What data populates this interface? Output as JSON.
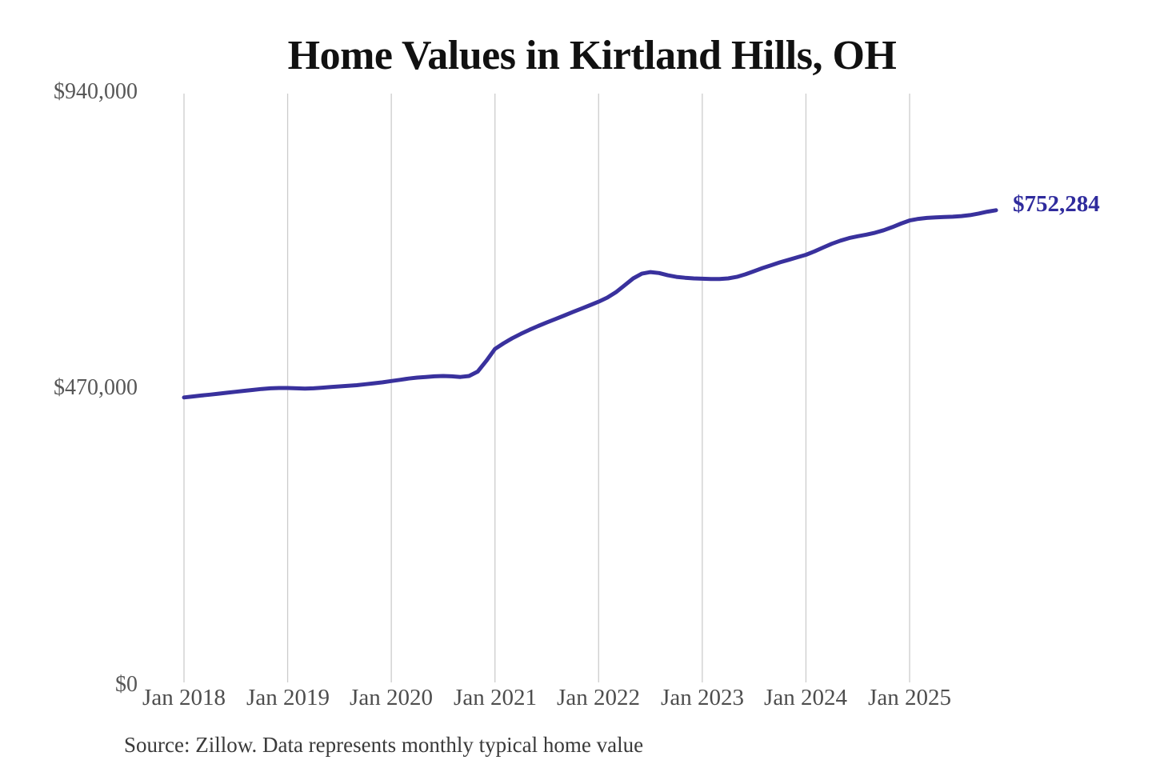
{
  "page": {
    "background_color": "#ffffff"
  },
  "chart_data": {
    "type": "line",
    "title": "Home Values in Kirtland Hills, OH",
    "source_note": "Source: Zillow. Data represents monthly typical home value",
    "series_name": "Monthly typical home value",
    "line_color": "#39319d",
    "grid_color": "#cccccc",
    "end_label": "$752,284",
    "end_value": 752284,
    "ylim": [
      0,
      940000
    ],
    "y_ticks": [
      "$940,000",
      "$470,000",
      "$0"
    ],
    "y_tick_values": [
      940000,
      470000,
      0
    ],
    "x_tick_labels": [
      "Jan 2018",
      "Jan 2019",
      "Jan 2020",
      "Jan 2021",
      "Jan 2022",
      "Jan 2023",
      "Jan 2024",
      "Jan 2025"
    ],
    "grid": "vertical-only",
    "legend": "none",
    "x": [
      "2018-01",
      "2018-02",
      "2018-03",
      "2018-04",
      "2018-05",
      "2018-06",
      "2018-07",
      "2018-08",
      "2018-09",
      "2018-10",
      "2018-11",
      "2018-12",
      "2019-01",
      "2019-02",
      "2019-03",
      "2019-04",
      "2019-05",
      "2019-06",
      "2019-07",
      "2019-08",
      "2019-09",
      "2019-10",
      "2019-11",
      "2019-12",
      "2020-01",
      "2020-02",
      "2020-03",
      "2020-04",
      "2020-05",
      "2020-06",
      "2020-07",
      "2020-08",
      "2020-09",
      "2020-10",
      "2020-11",
      "2020-12",
      "2021-01",
      "2021-02",
      "2021-03",
      "2021-04",
      "2021-05",
      "2021-06",
      "2021-07",
      "2021-08",
      "2021-09",
      "2021-10",
      "2021-11",
      "2021-12",
      "2022-01",
      "2022-02",
      "2022-03",
      "2022-04",
      "2022-05",
      "2022-06",
      "2022-07",
      "2022-08",
      "2022-09",
      "2022-10",
      "2022-11",
      "2022-12",
      "2023-01",
      "2023-02",
      "2023-03",
      "2023-04",
      "2023-05",
      "2023-06",
      "2023-07",
      "2023-08",
      "2023-09",
      "2023-10",
      "2023-11",
      "2023-12",
      "2024-01",
      "2024-02",
      "2024-03",
      "2024-04",
      "2024-05",
      "2024-06",
      "2024-07",
      "2024-08",
      "2024-09",
      "2024-10",
      "2024-11",
      "2024-12",
      "2025-01",
      "2025-02",
      "2025-03",
      "2025-04",
      "2025-05",
      "2025-06",
      "2025-07",
      "2025-08",
      "2025-09",
      "2025-10",
      "2025-11"
    ],
    "values": [
      455000,
      456500,
      458000,
      459500,
      461000,
      462500,
      464000,
      465500,
      467000,
      468500,
      469500,
      470000,
      470000,
      469500,
      469000,
      469500,
      470500,
      471500,
      472500,
      473500,
      474500,
      476000,
      477500,
      479000,
      481000,
      483000,
      485000,
      486500,
      487500,
      488500,
      489000,
      488500,
      487500,
      489000,
      496000,
      513000,
      532000,
      541000,
      549000,
      556000,
      562500,
      568500,
      574000,
      579500,
      585000,
      590500,
      596000,
      601500,
      607000,
      613500,
      622000,
      633000,
      644000,
      651500,
      654000,
      652500,
      649000,
      646500,
      645000,
      644000,
      643500,
      643000,
      643000,
      644000,
      646500,
      650500,
      655500,
      660500,
      665000,
      669500,
      673500,
      677500,
      681500,
      687000,
      693000,
      699000,
      704000,
      708000,
      711000,
      713500,
      716500,
      720500,
      725500,
      731000,
      736000,
      738500,
      740000,
      741000,
      741500,
      742000,
      743000,
      744500,
      747000,
      750000,
      752284
    ]
  }
}
